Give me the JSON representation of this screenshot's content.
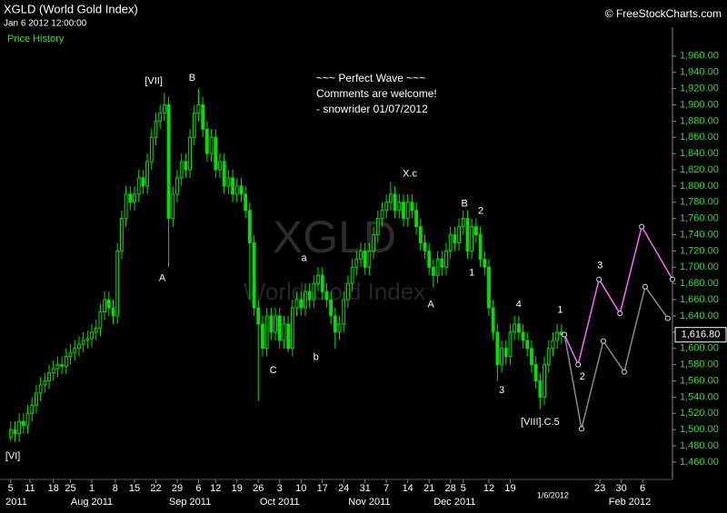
{
  "chart_data": {
    "type": "candlestick",
    "title": "XGLD (World Gold Index)",
    "timestamp": "Jan 6 2012 12:00:00",
    "panel_label": "Price History",
    "copyright": "© FreeStockCharts.com",
    "watermark": [
      "XGLD",
      "World Gold Index"
    ],
    "comment": [
      "~~~ Perfect Wave ~~~",
      "Comments are welcome!",
      "- snowrider  01/07/2012"
    ],
    "color": "#00e000",
    "x": [
      0,
      1,
      2,
      3,
      4,
      5,
      6,
      7,
      8,
      9,
      10,
      11,
      12,
      13,
      14,
      15,
      16,
      17,
      18,
      19,
      20,
      21,
      22,
      23,
      24,
      25,
      26,
      27,
      28,
      29,
      30,
      31,
      32,
      33,
      34,
      35,
      36,
      37,
      38,
      39,
      40,
      41,
      42,
      43,
      44,
      45,
      46,
      47,
      48,
      49,
      50,
      51,
      52,
      53,
      54,
      55,
      56,
      57,
      58,
      59,
      60,
      61,
      62,
      63,
      64,
      65,
      66,
      67,
      68,
      69,
      70,
      71,
      72,
      73,
      74,
      75,
      76,
      77,
      78,
      79,
      80,
      81,
      82,
      83,
      84,
      85,
      86,
      87,
      88,
      89,
      90,
      91,
      92,
      93,
      94,
      95,
      96,
      97,
      98,
      99,
      100,
      101,
      102,
      103,
      104,
      105,
      106,
      107,
      108,
      109,
      110,
      111,
      112,
      113,
      114,
      115,
      116,
      117,
      118,
      119,
      120,
      121,
      122,
      123,
      124,
      125,
      126,
      127,
      128,
      129
    ],
    "open": [
      1490,
      1500,
      1495,
      1510,
      1505,
      1520,
      1530,
      1545,
      1555,
      1560,
      1570,
      1575,
      1580,
      1578,
      1590,
      1595,
      1600,
      1605,
      1610,
      1612,
      1620,
      1625,
      1645,
      1660,
      1650,
      1640,
      1720,
      1760,
      1790,
      1780,
      1790,
      1810,
      1800,
      1830,
      1860,
      1880,
      1890,
      1900,
      1760,
      1790,
      1810,
      1830,
      1820,
      1860,
      1890,
      1900,
      1870,
      1840,
      1860,
      1820,
      1830,
      1800,
      1810,
      1790,
      1800,
      1790,
      1770,
      1730,
      1650,
      1630,
      1600,
      1640,
      1620,
      1640,
      1610,
      1630,
      1600,
      1650,
      1660,
      1650,
      1670,
      1660,
      1680,
      1690,
      1670,
      1660,
      1640,
      1620,
      1630,
      1660,
      1680,
      1700,
      1710,
      1720,
      1700,
      1720,
      1740,
      1760,
      1770,
      1780,
      1790,
      1770,
      1780,
      1760,
      1780,
      1770,
      1750,
      1730,
      1720,
      1700,
      1690,
      1710,
      1700,
      1720,
      1740,
      1730,
      1750,
      1760,
      1720,
      1750,
      1740,
      1710,
      1700,
      1650,
      1620,
      1580,
      1600,
      1590,
      1620,
      1630,
      1620,
      1610,
      1600,
      1580,
      1560,
      1540,
      1580,
      1600,
      1610,
      1620
    ],
    "high": [
      1510,
      1510,
      1520,
      1520,
      1530,
      1540,
      1555,
      1565,
      1570,
      1580,
      1585,
      1590,
      1590,
      1600,
      1605,
      1610,
      1615,
      1620,
      1622,
      1630,
      1635,
      1655,
      1670,
      1670,
      1660,
      1730,
      1770,
      1800,
      1800,
      1800,
      1820,
      1820,
      1840,
      1870,
      1890,
      1900,
      1915,
      1910,
      1800,
      1820,
      1840,
      1840,
      1870,
      1900,
      1920,
      1910,
      1880,
      1870,
      1870,
      1840,
      1840,
      1820,
      1820,
      1810,
      1810,
      1800,
      1780,
      1740,
      1660,
      1640,
      1650,
      1650,
      1650,
      1650,
      1640,
      1640,
      1660,
      1670,
      1670,
      1680,
      1680,
      1690,
      1700,
      1700,
      1680,
      1670,
      1650,
      1640,
      1670,
      1690,
      1710,
      1720,
      1730,
      1730,
      1730,
      1750,
      1770,
      1780,
      1790,
      1805,
      1800,
      1790,
      1790,
      1790,
      1790,
      1780,
      1760,
      1740,
      1730,
      1710,
      1720,
      1720,
      1730,
      1750,
      1750,
      1760,
      1770,
      1770,
      1760,
      1760,
      1750,
      1720,
      1710,
      1660,
      1630,
      1610,
      1610,
      1630,
      1640,
      1640,
      1630,
      1620,
      1610,
      1590,
      1570,
      1590,
      1610,
      1620,
      1630,
      1630
    ],
    "low": [
      1485,
      1485,
      1485,
      1495,
      1495,
      1510,
      1520,
      1535,
      1545,
      1550,
      1560,
      1565,
      1568,
      1568,
      1580,
      1585,
      1590,
      1595,
      1600,
      1602,
      1610,
      1615,
      1635,
      1640,
      1630,
      1630,
      1710,
      1750,
      1770,
      1770,
      1780,
      1790,
      1790,
      1820,
      1850,
      1870,
      1880,
      1700,
      1750,
      1780,
      1800,
      1810,
      1810,
      1850,
      1880,
      1860,
      1830,
      1830,
      1810,
      1810,
      1790,
      1790,
      1780,
      1780,
      1780,
      1760,
      1660,
      1640,
      1535,
      1590,
      1590,
      1610,
      1610,
      1600,
      1600,
      1595,
      1590,
      1640,
      1640,
      1640,
      1650,
      1650,
      1670,
      1660,
      1650,
      1630,
      1600,
      1610,
      1620,
      1650,
      1670,
      1690,
      1700,
      1690,
      1690,
      1710,
      1730,
      1750,
      1760,
      1770,
      1760,
      1760,
      1750,
      1750,
      1760,
      1740,
      1720,
      1710,
      1690,
      1675,
      1680,
      1690,
      1690,
      1710,
      1720,
      1720,
      1740,
      1710,
      1710,
      1730,
      1700,
      1690,
      1640,
      1610,
      1560,
      1570,
      1580,
      1580,
      1610,
      1610,
      1600,
      1590,
      1570,
      1550,
      1525,
      1530,
      1570,
      1590,
      1600,
      1605
    ],
    "close": [
      1500,
      1495,
      1510,
      1505,
      1520,
      1530,
      1545,
      1555,
      1560,
      1570,
      1575,
      1580,
      1578,
      1590,
      1595,
      1600,
      1605,
      1610,
      1612,
      1620,
      1625,
      1645,
      1660,
      1650,
      1640,
      1720,
      1760,
      1790,
      1780,
      1790,
      1810,
      1800,
      1830,
      1860,
      1880,
      1890,
      1900,
      1760,
      1790,
      1810,
      1830,
      1820,
      1860,
      1890,
      1900,
      1870,
      1840,
      1860,
      1820,
      1830,
      1800,
      1810,
      1790,
      1800,
      1790,
      1770,
      1730,
      1650,
      1630,
      1600,
      1640,
      1620,
      1640,
      1610,
      1630,
      1600,
      1650,
      1660,
      1650,
      1670,
      1660,
      1680,
      1690,
      1670,
      1660,
      1640,
      1620,
      1630,
      1660,
      1680,
      1700,
      1710,
      1720,
      1700,
      1720,
      1740,
      1760,
      1770,
      1780,
      1790,
      1770,
      1780,
      1760,
      1780,
      1770,
      1750,
      1730,
      1720,
      1700,
      1690,
      1710,
      1700,
      1720,
      1740,
      1730,
      1750,
      1760,
      1720,
      1750,
      1740,
      1710,
      1700,
      1650,
      1620,
      1580,
      1600,
      1590,
      1620,
      1630,
      1620,
      1610,
      1600,
      1580,
      1560,
      1540,
      1580,
      1600,
      1610,
      1620,
      1616.8
    ],
    "last_price": {
      "value": 1616.8,
      "label": "1,616.80"
    },
    "projections": [
      {
        "color": "#ff66ff",
        "x": [
          129.7,
          132.9,
          137.8,
          142.7,
          147.8,
          155
        ],
        "values": [
          1617,
          1580,
          1685,
          1643,
          1750,
          1685
        ]
      },
      {
        "color": "#888888",
        "x": [
          129.7,
          133.7,
          138.8,
          143.7,
          148.6,
          153.9
        ],
        "values": [
          1617,
          1501,
          1609,
          1571,
          1676,
          1637
        ]
      }
    ],
    "annotations": [
      {
        "text": "[VI]",
        "x": 0.5,
        "y": 1467
      },
      {
        "text": "[VII]",
        "x": 33.5,
        "y": 1929
      },
      {
        "text": "B",
        "x": 42.5,
        "y": 1933
      },
      {
        "text": "A",
        "x": 35.5,
        "y": 1686
      },
      {
        "text": "C",
        "x": 61.5,
        "y": 1573
      },
      {
        "text": "a",
        "x": 68.7,
        "y": 1711
      },
      {
        "text": "b",
        "x": 71.5,
        "y": 1589
      },
      {
        "text": "X.c",
        "x": 93.5,
        "y": 1815
      },
      {
        "text": "A",
        "x": 98.4,
        "y": 1654
      },
      {
        "text": "B",
        "x": 106.3,
        "y": 1778
      },
      {
        "text": "2",
        "x": 110.1,
        "y": 1769
      },
      {
        "text": "1",
        "x": 108,
        "y": 1693
      },
      {
        "text": "4",
        "x": 119,
        "y": 1654
      },
      {
        "text": "3",
        "x": 115,
        "y": 1548
      },
      {
        "text": "[VIII].C.5",
        "x": 124,
        "y": 1509
      },
      {
        "text": "1",
        "x": 128.7,
        "y": 1647
      },
      {
        "text": "2",
        "x": 133.9,
        "y": 1565
      },
      {
        "text": "3",
        "x": 138,
        "y": 1702
      }
    ],
    "xlim": [
      -2.5,
      155
    ],
    "xticks": [
      {
        "value": 0,
        "label": "5"
      },
      {
        "value": 4.5,
        "label": "11"
      },
      {
        "value": 10,
        "label": "18"
      },
      {
        "value": 14,
        "label": "25"
      },
      {
        "value": 19,
        "label": "1"
      },
      {
        "value": 24.5,
        "label": "8"
      },
      {
        "value": 29,
        "label": "15"
      },
      {
        "value": 34,
        "label": "22"
      },
      {
        "value": 39,
        "label": "29"
      },
      {
        "value": 44,
        "label": "6"
      },
      {
        "value": 48,
        "label": "12"
      },
      {
        "value": 53,
        "label": "19"
      },
      {
        "value": 58,
        "label": "26"
      },
      {
        "value": 63,
        "label": "3"
      },
      {
        "value": 68,
        "label": "10"
      },
      {
        "value": 73,
        "label": "17"
      },
      {
        "value": 78,
        "label": "24"
      },
      {
        "value": 83,
        "label": "31"
      },
      {
        "value": 88,
        "label": "7"
      },
      {
        "value": 93,
        "label": "14"
      },
      {
        "value": 98,
        "label": "21"
      },
      {
        "value": 103,
        "label": "28"
      },
      {
        "value": 106,
        "label": "5"
      },
      {
        "value": 112,
        "label": "12"
      },
      {
        "value": 117,
        "label": "19"
      },
      {
        "value": 138,
        "label": "23"
      },
      {
        "value": 143,
        "label": "30"
      },
      {
        "value": 148,
        "label": "6"
      }
    ],
    "cursor_date": {
      "value": 127,
      "label": "1/6/2012"
    },
    "month_ticks": [
      {
        "value": 0,
        "label": "2011"
      },
      {
        "value": 19,
        "label": "Aug 2011"
      },
      {
        "value": 42,
        "label": "Sep 2011"
      },
      {
        "value": 63,
        "label": "Oct 2011"
      },
      {
        "value": 84,
        "label": "Nov 2011"
      },
      {
        "value": 104,
        "label": "Dec 2011"
      },
      {
        "value": 145,
        "label": "Feb 2012"
      }
    ],
    "ylim": [
      1442,
      1990
    ],
    "yticks": [
      {
        "value": 1460,
        "label": "1,460.00"
      },
      {
        "value": 1480,
        "label": "1,480.00"
      },
      {
        "value": 1500,
        "label": "1,500.00"
      },
      {
        "value": 1520,
        "label": "1,520.00"
      },
      {
        "value": 1540,
        "label": "1,540.00"
      },
      {
        "value": 1560,
        "label": "1,560.00"
      },
      {
        "value": 1580,
        "label": "1,580.00"
      },
      {
        "value": 1600,
        "label": "1,600.00"
      },
      {
        "value": 1620,
        "label": "1,620.00"
      },
      {
        "value": 1640,
        "label": "1,640.00"
      },
      {
        "value": 1660,
        "label": "1,660.00"
      },
      {
        "value": 1680,
        "label": "1,680.00"
      },
      {
        "value": 1700,
        "label": "1,700.00"
      },
      {
        "value": 1720,
        "label": "1,720.00"
      },
      {
        "value": 1740,
        "label": "1,740.00"
      },
      {
        "value": 1760,
        "label": "1,760.00"
      },
      {
        "value": 1780,
        "label": "1,780.00"
      },
      {
        "value": 1800,
        "label": "1,800.00"
      },
      {
        "value": 1820,
        "label": "1,820.00"
      },
      {
        "value": 1840,
        "label": "1,840.00"
      },
      {
        "value": 1860,
        "label": "1,860.00"
      },
      {
        "value": 1880,
        "label": "1,880.00"
      },
      {
        "value": 1900,
        "label": "1,900.00"
      },
      {
        "value": 1920,
        "label": "1,920.00"
      },
      {
        "value": 1940,
        "label": "1,940.00"
      },
      {
        "value": 1960,
        "label": "1,960.00"
      }
    ],
    "grid": false
  }
}
